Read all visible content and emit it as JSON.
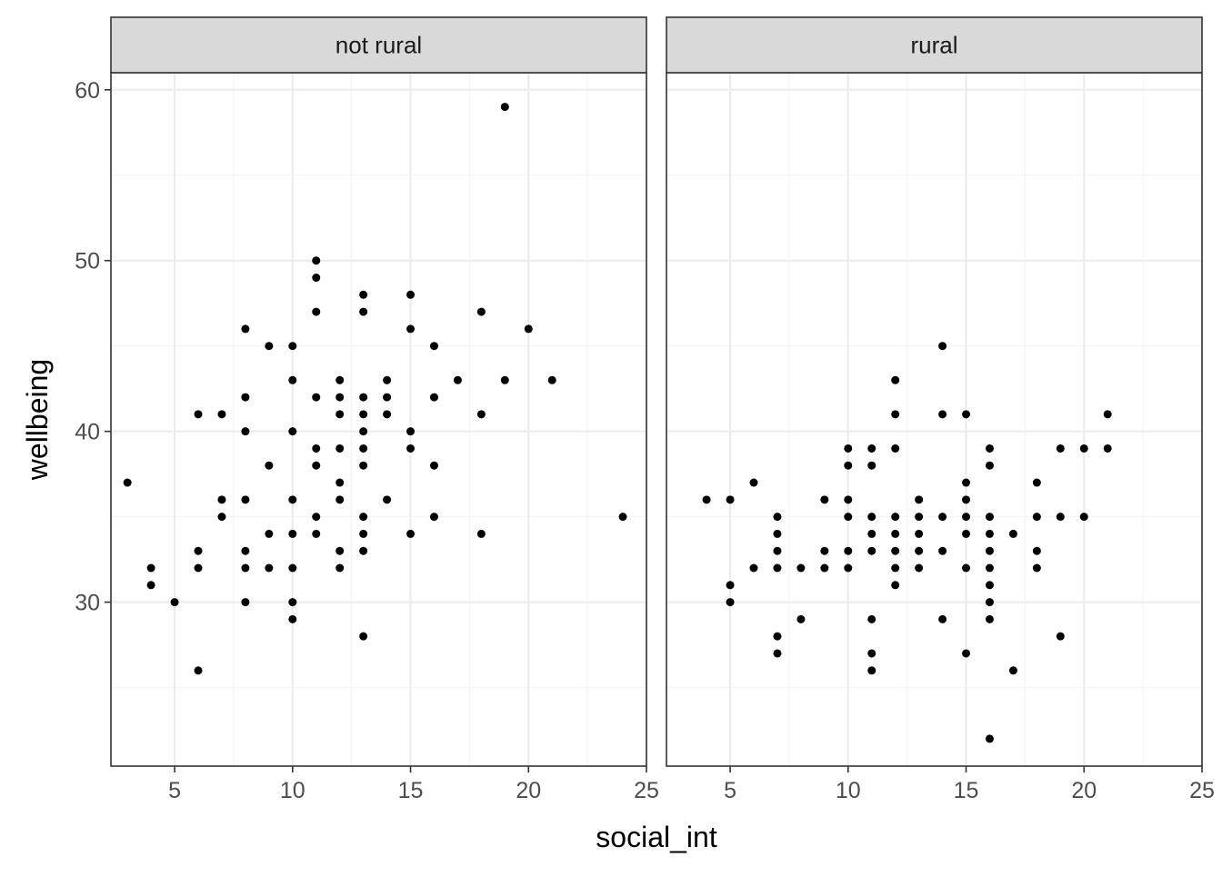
{
  "chart_data": {
    "type": "scatter",
    "xlabel": "social_int",
    "ylabel": "wellbeing",
    "xlim": [
      2.3,
      25.0
    ],
    "ylim": [
      20.4,
      61.0
    ],
    "x_ticks": [
      "5",
      "10",
      "15",
      "20",
      "25"
    ],
    "y_ticks": [
      "30",
      "40",
      "50",
      "60"
    ],
    "grid": true,
    "point_color": "#000000",
    "strip_fill": "#d9d9d9",
    "panel_border_color": "#333333",
    "grid_major_color": "#ebebeb",
    "panels": [
      {
        "name": "not rural",
        "points": [
          [
            3,
            37
          ],
          [
            4,
            32
          ],
          [
            4,
            31
          ],
          [
            5,
            30
          ],
          [
            6,
            41
          ],
          [
            6,
            33
          ],
          [
            6,
            32
          ],
          [
            6,
            26
          ],
          [
            7,
            41
          ],
          [
            7,
            36
          ],
          [
            7,
            35
          ],
          [
            8,
            46
          ],
          [
            8,
            42
          ],
          [
            8,
            40
          ],
          [
            8,
            36
          ],
          [
            8,
            33
          ],
          [
            8,
            32
          ],
          [
            8,
            30
          ],
          [
            9,
            45
          ],
          [
            9,
            38
          ],
          [
            9,
            34
          ],
          [
            9,
            32
          ],
          [
            10,
            45
          ],
          [
            10,
            43
          ],
          [
            10,
            40
          ],
          [
            10,
            36
          ],
          [
            10,
            34
          ],
          [
            10,
            32
          ],
          [
            10,
            30
          ],
          [
            10,
            29
          ],
          [
            11,
            50
          ],
          [
            11,
            49
          ],
          [
            11,
            47
          ],
          [
            11,
            42
          ],
          [
            11,
            39
          ],
          [
            11,
            38
          ],
          [
            11,
            35
          ],
          [
            11,
            34
          ],
          [
            12,
            43
          ],
          [
            12,
            42
          ],
          [
            12,
            41
          ],
          [
            12,
            39
          ],
          [
            12,
            37
          ],
          [
            12,
            36
          ],
          [
            12,
            33
          ],
          [
            12,
            32
          ],
          [
            13,
            48
          ],
          [
            13,
            47
          ],
          [
            13,
            42
          ],
          [
            13,
            41
          ],
          [
            13,
            40
          ],
          [
            13,
            39
          ],
          [
            13,
            38
          ],
          [
            13,
            35
          ],
          [
            13,
            34
          ],
          [
            13,
            33
          ],
          [
            13,
            28
          ],
          [
            14,
            43
          ],
          [
            14,
            42
          ],
          [
            14,
            41
          ],
          [
            14,
            36
          ],
          [
            15,
            48
          ],
          [
            15,
            46
          ],
          [
            15,
            40
          ],
          [
            15,
            39
          ],
          [
            15,
            34
          ],
          [
            16,
            45
          ],
          [
            16,
            42
          ],
          [
            16,
            38
          ],
          [
            16,
            35
          ],
          [
            17,
            43
          ],
          [
            18,
            47
          ],
          [
            18,
            41
          ],
          [
            18,
            34
          ],
          [
            19,
            59
          ],
          [
            19,
            43
          ],
          [
            20,
            46
          ],
          [
            21,
            43
          ],
          [
            24,
            35
          ]
        ]
      },
      {
        "name": "rural",
        "points": [
          [
            4,
            36
          ],
          [
            5,
            36
          ],
          [
            5,
            31
          ],
          [
            5,
            30
          ],
          [
            6,
            37
          ],
          [
            6,
            32
          ],
          [
            7,
            35
          ],
          [
            7,
            34
          ],
          [
            7,
            33
          ],
          [
            7,
            32
          ],
          [
            7,
            28
          ],
          [
            7,
            27
          ],
          [
            8,
            32
          ],
          [
            8,
            29
          ],
          [
            9,
            36
          ],
          [
            9,
            33
          ],
          [
            9,
            32
          ],
          [
            10,
            39
          ],
          [
            10,
            38
          ],
          [
            10,
            36
          ],
          [
            10,
            35
          ],
          [
            10,
            33
          ],
          [
            10,
            32
          ],
          [
            11,
            39
          ],
          [
            11,
            38
          ],
          [
            11,
            35
          ],
          [
            11,
            34
          ],
          [
            11,
            33
          ],
          [
            11,
            29
          ],
          [
            11,
            27
          ],
          [
            11,
            26
          ],
          [
            12,
            43
          ],
          [
            12,
            41
          ],
          [
            12,
            39
          ],
          [
            12,
            35
          ],
          [
            12,
            34
          ],
          [
            12,
            33
          ],
          [
            12,
            32
          ],
          [
            12,
            31
          ],
          [
            13,
            36
          ],
          [
            13,
            35
          ],
          [
            13,
            34
          ],
          [
            13,
            33
          ],
          [
            13,
            32
          ],
          [
            14,
            45
          ],
          [
            14,
            41
          ],
          [
            14,
            35
          ],
          [
            14,
            33
          ],
          [
            14,
            29
          ],
          [
            15,
            41
          ],
          [
            15,
            37
          ],
          [
            15,
            36
          ],
          [
            15,
            35
          ],
          [
            15,
            34
          ],
          [
            15,
            32
          ],
          [
            15,
            27
          ],
          [
            16,
            39
          ],
          [
            16,
            38
          ],
          [
            16,
            35
          ],
          [
            16,
            34
          ],
          [
            16,
            33
          ],
          [
            16,
            32
          ],
          [
            16,
            31
          ],
          [
            16,
            30
          ],
          [
            16,
            29
          ],
          [
            16,
            22
          ],
          [
            17,
            34
          ],
          [
            17,
            26
          ],
          [
            18,
            37
          ],
          [
            18,
            35
          ],
          [
            18,
            33
          ],
          [
            18,
            32
          ],
          [
            19,
            39
          ],
          [
            19,
            35
          ],
          [
            19,
            28
          ],
          [
            20,
            39
          ],
          [
            20,
            35
          ],
          [
            21,
            41
          ],
          [
            21,
            39
          ]
        ]
      }
    ]
  }
}
